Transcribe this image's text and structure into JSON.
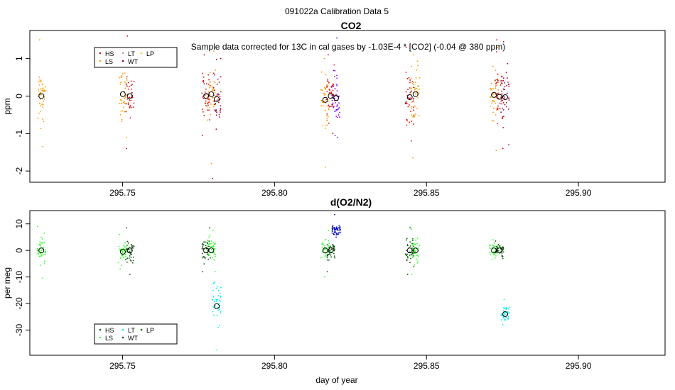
{
  "figure": {
    "suptitle": "091022a   Calibration Data 5",
    "xlabel": "day of year",
    "annotation": "Sample data corrected for 13C in cal gases by -1.03E-4 * [CO2] (-0.04 @ 380 ppm)"
  },
  "colors": {
    "HS": "#dd0000",
    "LS": "#ff9900",
    "LT": "#cc9999",
    "WT": "#990033",
    "LP": "#ffcc00",
    "LS2": "#33ff33",
    "LT2": "#00eeee",
    "WT2": "#005500",
    "HS2": "#005500",
    "LP2": "#006600",
    "TARGET": "#7700ee",
    "TARGET2": "#0000cc"
  },
  "chart_data": [
    {
      "type": "scatter",
      "title": "CO2",
      "xlabel": "",
      "ylabel": "ppm",
      "xlim": [
        295.7195,
        295.9285
      ],
      "ylim": [
        -2.3,
        1.75
      ],
      "xticks": [
        295.75,
        295.8,
        295.85,
        295.9
      ],
      "xtick_labels": [
        "295.75",
        "295.80",
        "295.85",
        "295.90"
      ],
      "yticks": [
        -2,
        -1,
        0,
        1
      ],
      "ytick_labels": [
        "-2",
        "-1",
        "0",
        "1"
      ],
      "legend": {
        "position": "top-left",
        "entries": [
          {
            "label": "HS",
            "color": "#dd0000"
          },
          {
            "label": "LT",
            "color": "#cc9999"
          },
          {
            "label": "LP",
            "color": "#ffcc00"
          },
          {
            "label": "LS",
            "color": "#ff9900"
          },
          {
            "label": "WT",
            "color": "#990033"
          }
        ]
      },
      "clusters": [
        {
          "x": 295.7233,
          "mean": 0.0,
          "spread": 0.55,
          "ymin": -1.35,
          "ymax": 1.5,
          "color": "#ff9900",
          "n": 45
        },
        {
          "x": 295.7501,
          "mean": 0.05,
          "spread": 0.5,
          "ymin": -1.1,
          "ymax": 1.0,
          "color": "#ff9900",
          "n": 40
        },
        {
          "x": 295.7524,
          "mean": 0.0,
          "spread": 0.55,
          "ymin": -1.4,
          "ymax": 1.6,
          "color": "#dd0000",
          "n": 40
        },
        {
          "x": 295.7775,
          "mean": 0.0,
          "spread": 0.5,
          "ymin": -1.05,
          "ymax": 1.1,
          "color": "#dd0000",
          "n": 40
        },
        {
          "x": 295.7792,
          "mean": 0.05,
          "spread": 0.5,
          "ymin": -1.8,
          "ymax": 1.2,
          "color": "#ff9900",
          "n": 40
        },
        {
          "x": 295.781,
          "mean": -0.1,
          "spread": 0.6,
          "ymin": -2.2,
          "ymax": 1.0,
          "color": "#990033",
          "n": 40
        },
        {
          "x": 295.8167,
          "mean": -0.1,
          "spread": 0.55,
          "ymin": -1.9,
          "ymax": 1.0,
          "color": "#ff9900",
          "n": 40
        },
        {
          "x": 295.8185,
          "mean": 0.0,
          "spread": 0.5,
          "ymin": -1.0,
          "ymax": 1.1,
          "color": "#dd0000",
          "n": 40
        },
        {
          "x": 295.8203,
          "mean": -0.05,
          "spread": 0.6,
          "ymin": -1.1,
          "ymax": 1.55,
          "color": "#7700ee",
          "n": 40
        },
        {
          "x": 295.8445,
          "mean": -0.05,
          "spread": 0.55,
          "ymin": -1.2,
          "ymax": 1.3,
          "color": "#dd0000",
          "n": 40
        },
        {
          "x": 295.8464,
          "mean": 0.05,
          "spread": 0.55,
          "ymin": -1.65,
          "ymax": 1.1,
          "color": "#ff9900",
          "n": 40
        },
        {
          "x": 295.8722,
          "mean": 0.0,
          "spread": 0.6,
          "ymin": -1.45,
          "ymax": 1.3,
          "color": "#ff9900",
          "n": 40
        },
        {
          "x": 295.874,
          "mean": 0.0,
          "spread": 0.6,
          "ymin": -1.4,
          "ymax": 1.5,
          "color": "#dd0000",
          "n": 40
        },
        {
          "x": 295.8759,
          "mean": -0.05,
          "spread": 0.6,
          "ymin": -1.3,
          "ymax": 1.45,
          "color": "#990033",
          "n": 40
        }
      ],
      "means": [
        {
          "x": 295.7233,
          "y": 0.0
        },
        {
          "x": 295.7501,
          "y": 0.05
        },
        {
          "x": 295.7524,
          "y": 0.0
        },
        {
          "x": 295.7775,
          "y": 0.0
        },
        {
          "x": 295.7792,
          "y": 0.05
        },
        {
          "x": 295.781,
          "y": -0.08
        },
        {
          "x": 295.8167,
          "y": -0.1
        },
        {
          "x": 295.8185,
          "y": 0.0
        },
        {
          "x": 295.8203,
          "y": -0.05
        },
        {
          "x": 295.8445,
          "y": -0.03
        },
        {
          "x": 295.8464,
          "y": 0.05
        },
        {
          "x": 295.8722,
          "y": 0.03
        },
        {
          "x": 295.874,
          "y": -0.02
        },
        {
          "x": 295.8759,
          "y": -0.03
        }
      ]
    },
    {
      "type": "scatter",
      "title": "d(O2/N2)",
      "xlabel": "day of year",
      "ylabel": "per meg",
      "xlim": [
        295.7195,
        295.9285
      ],
      "ylim": [
        -39.5,
        15.0
      ],
      "xticks": [
        295.75,
        295.8,
        295.85,
        295.9
      ],
      "xtick_labels": [
        "295.75",
        "295.80",
        "295.85",
        "295.90"
      ],
      "yticks": [
        -30,
        -20,
        -10,
        0,
        10
      ],
      "ytick_labels": [
        "-30",
        "-20",
        "-10",
        "0",
        "10"
      ],
      "legend": {
        "position": "bottom-left",
        "entries": [
          {
            "label": "HS",
            "color": "#005500"
          },
          {
            "label": "LT",
            "color": "#00eeee"
          },
          {
            "label": "LP",
            "color": "#006600"
          },
          {
            "label": "LS",
            "color": "#33ff33"
          },
          {
            "label": "WT",
            "color": "#005500"
          }
        ]
      },
      "clusters": [
        {
          "x": 295.7233,
          "mean": 0.0,
          "spread": 3.5,
          "ymin": -10.5,
          "ymax": 9.0,
          "color": "#33ff33",
          "n": 45
        },
        {
          "x": 295.7501,
          "mean": -0.5,
          "spread": 3.0,
          "ymin": -7.0,
          "ymax": 6.0,
          "color": "#33ff33",
          "n": 40
        },
        {
          "x": 295.7524,
          "mean": 0.0,
          "spread": 3.5,
          "ymin": -9.0,
          "ymax": 8.5,
          "color": "#005500",
          "n": 40
        },
        {
          "x": 295.7775,
          "mean": 0.0,
          "spread": 3.5,
          "ymin": -8.0,
          "ymax": 8.5,
          "color": "#005500",
          "n": 40
        },
        {
          "x": 295.7792,
          "mean": 0.0,
          "spread": 3.5,
          "ymin": -8.0,
          "ymax": 7.5,
          "color": "#33ff33",
          "n": 40
        },
        {
          "x": 295.781,
          "mean": -21.0,
          "spread": 6.0,
          "ymin": -37.5,
          "ymax": -12.0,
          "color": "#00eeee",
          "n": 40
        },
        {
          "x": 295.8167,
          "mean": 0.0,
          "spread": 3.5,
          "ymin": -10.0,
          "ymax": 7.5,
          "color": "#33ff33",
          "n": 40
        },
        {
          "x": 295.8185,
          "mean": 0.0,
          "spread": 3.5,
          "ymin": -8.0,
          "ymax": 8.0,
          "color": "#005500",
          "n": 40
        },
        {
          "x": 295.8203,
          "mean": 7.5,
          "spread": 1.8,
          "ymin": 5.0,
          "ymax": 13.5,
          "color": "#0000cc",
          "n": 45
        },
        {
          "x": 295.8445,
          "mean": 0.0,
          "spread": 3.5,
          "ymin": -9.0,
          "ymax": 8.5,
          "color": "#005500",
          "n": 40
        },
        {
          "x": 295.8464,
          "mean": 0.0,
          "spread": 3.5,
          "ymin": -9.0,
          "ymax": 8.0,
          "color": "#33ff33",
          "n": 40
        },
        {
          "x": 295.8722,
          "mean": 0.0,
          "spread": 2.5,
          "ymin": -3.5,
          "ymax": 4.0,
          "color": "#33ff33",
          "n": 40
        },
        {
          "x": 295.874,
          "mean": 0.0,
          "spread": 2.0,
          "ymin": -3.0,
          "ymax": 3.5,
          "color": "#005500",
          "n": 40
        },
        {
          "x": 295.8759,
          "mean": -24.0,
          "spread": 2.5,
          "ymin": -28.0,
          "ymax": -18.5,
          "color": "#00eeee",
          "n": 40
        }
      ],
      "means": [
        {
          "x": 295.7233,
          "y": 0.0
        },
        {
          "x": 295.7501,
          "y": -0.5
        },
        {
          "x": 295.7524,
          "y": 0.0
        },
        {
          "x": 295.7775,
          "y": 0.0
        },
        {
          "x": 295.7792,
          "y": 0.0
        },
        {
          "x": 295.781,
          "y": -21.0
        },
        {
          "x": 295.8167,
          "y": 0.0
        },
        {
          "x": 295.8185,
          "y": 0.0
        },
        {
          "x": 295.8445,
          "y": 0.0
        },
        {
          "x": 295.8464,
          "y": 0.0
        },
        {
          "x": 295.8722,
          "y": 0.0
        },
        {
          "x": 295.874,
          "y": 0.0
        },
        {
          "x": 295.8759,
          "y": -24.0
        }
      ]
    }
  ]
}
